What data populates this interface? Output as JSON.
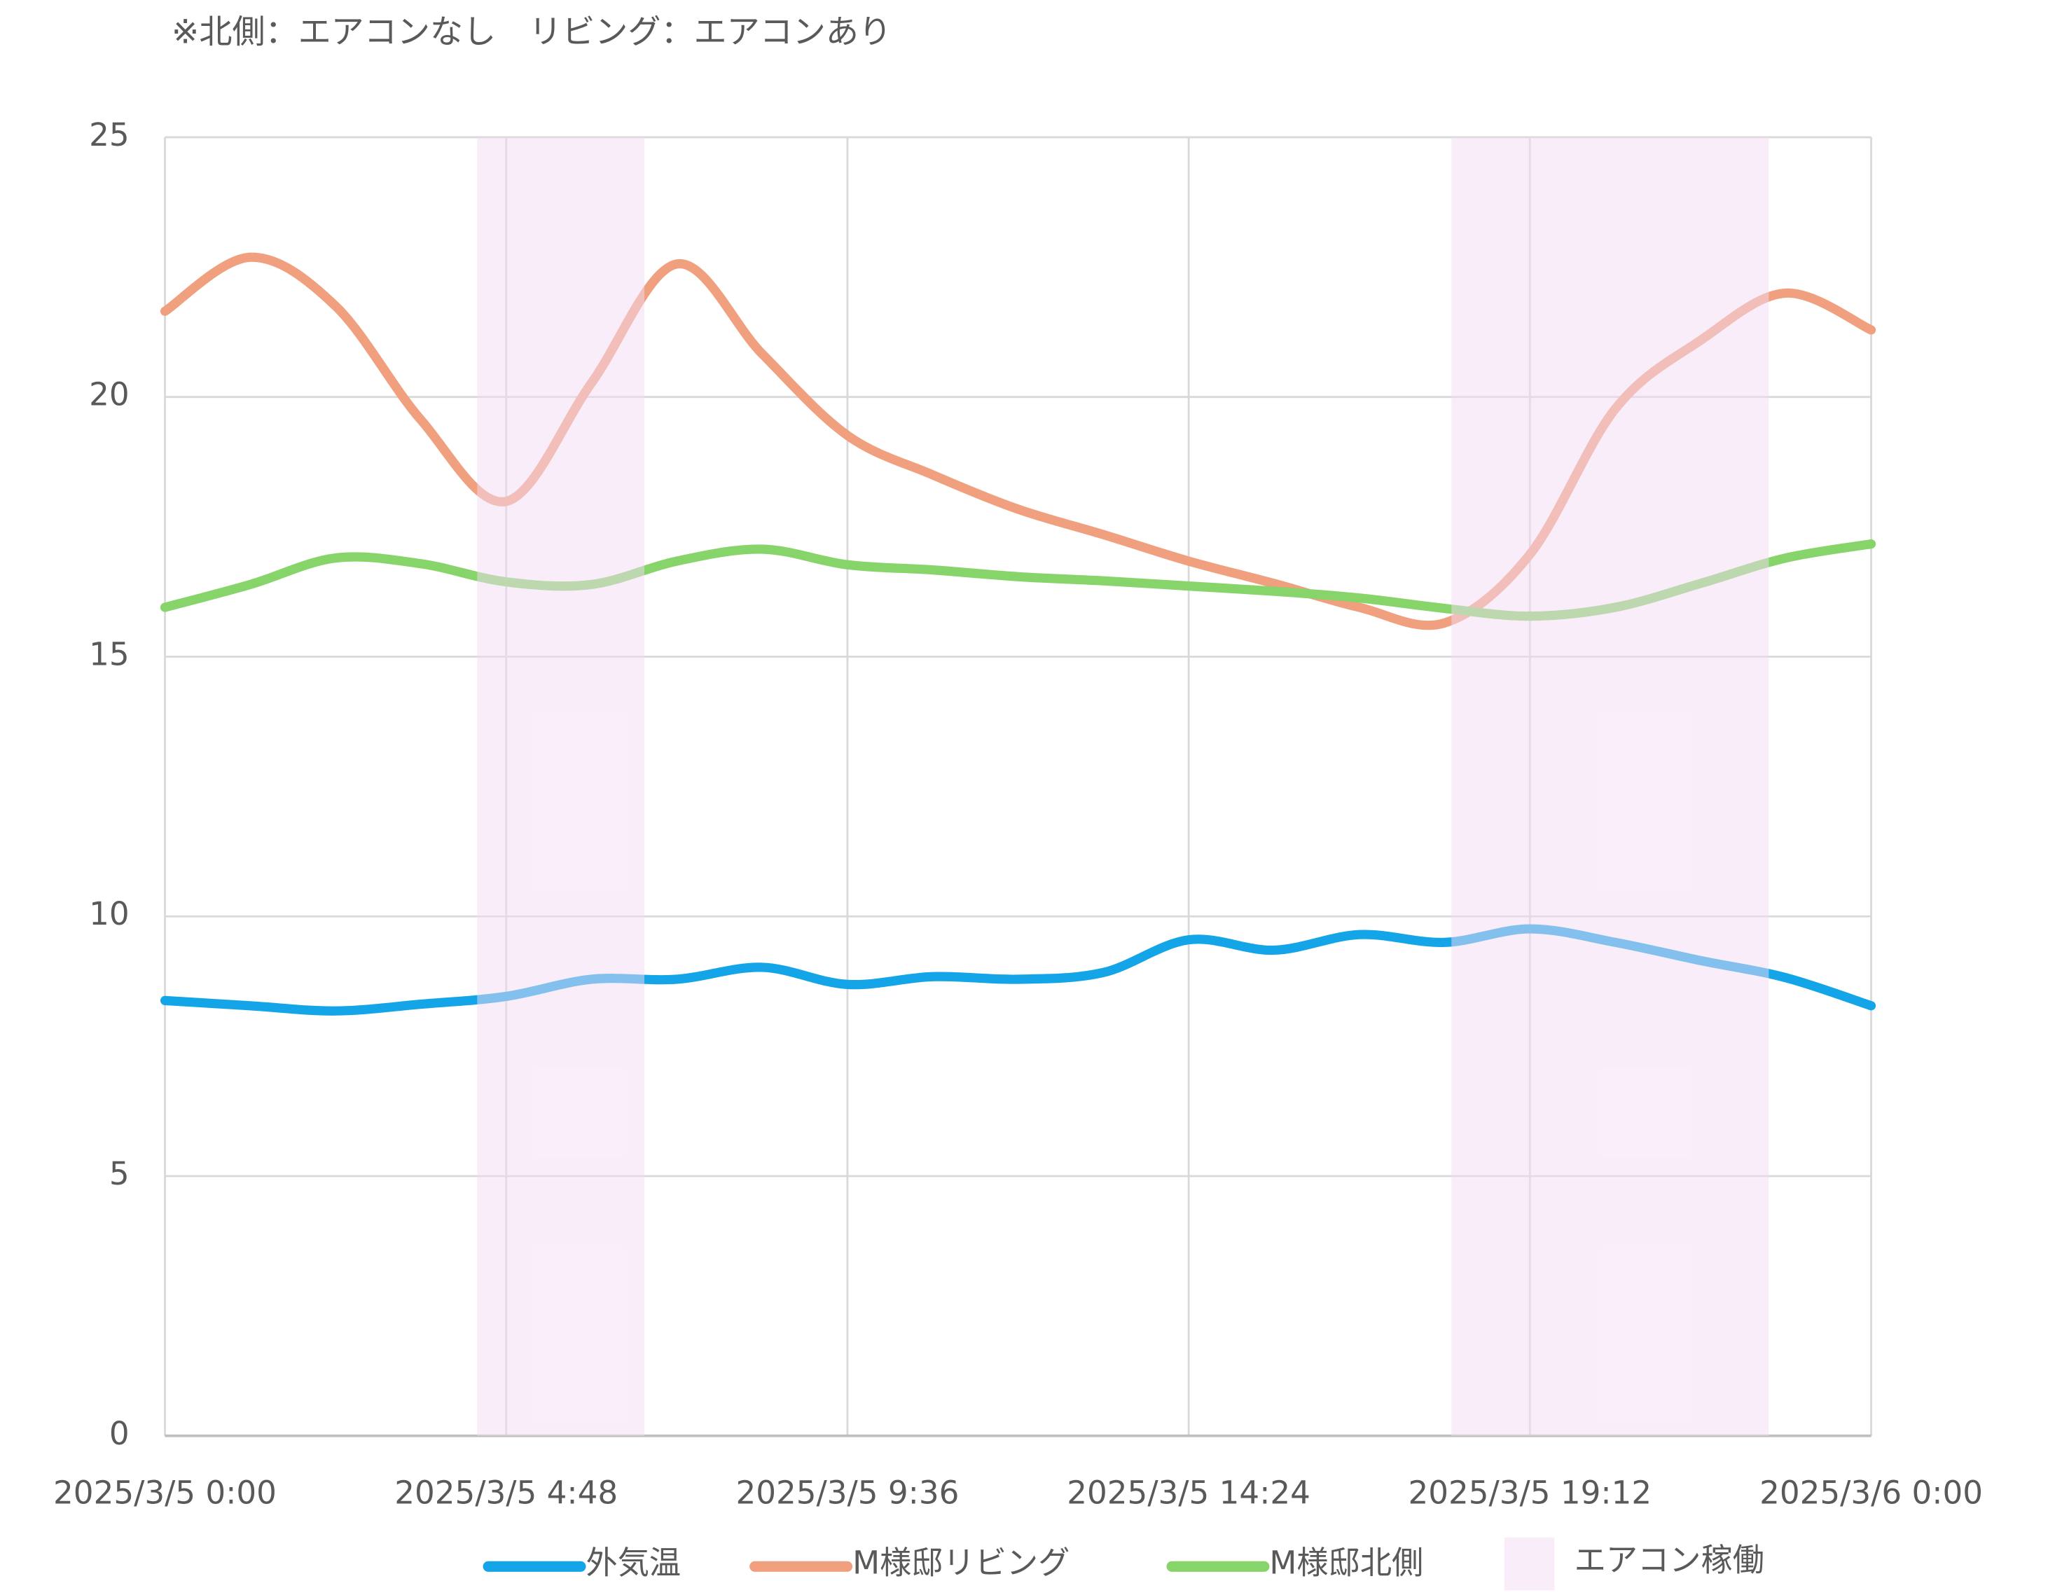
{
  "chart_data": {
    "type": "line",
    "subtitle": "※北側：エアコンなし　リビング：エアコンあり",
    "x": [
      45721,
      45721.05,
      45721.1,
      45721.15,
      45721.2,
      45721.25,
      45721.3,
      45721.35,
      45721.4,
      45721.45,
      45721.5,
      45721.55,
      45721.6,
      45721.65,
      45721.7,
      45721.75,
      45721.8,
      45721.85,
      45721.9,
      45721.95,
      45722
    ],
    "series": [
      {
        "name": "外気温",
        "color": "#14a5e8",
        "values": [
          8.38,
          8.28,
          8.18,
          8.31,
          8.46,
          8.79,
          8.79,
          9.02,
          8.69,
          8.84,
          8.79,
          8.92,
          9.55,
          9.35,
          9.65,
          9.5,
          9.76,
          9.5,
          9.15,
          8.82,
          8.28
        ]
      },
      {
        "name": "M様邸リビング",
        "color": "#f0a07e",
        "values": [
          21.65,
          22.69,
          21.75,
          19.56,
          17.99,
          20.27,
          22.56,
          20.83,
          19.26,
          18.5,
          17.84,
          17.35,
          16.84,
          16.41,
          15.95,
          15.65,
          16.97,
          19.77,
          21.09,
          22.0,
          21.29
        ]
      },
      {
        "name": "M様邸北側",
        "color": "#86d46a",
        "values": [
          15.95,
          16.39,
          16.9,
          16.79,
          16.44,
          16.39,
          16.84,
          17.07,
          16.77,
          16.67,
          16.54,
          16.46,
          16.36,
          16.26,
          16.13,
          15.93,
          15.78,
          15.95,
          16.41,
          16.9,
          17.17
        ]
      }
    ],
    "shaded": {
      "name": "エアコン稼働",
      "color": "#f3dcf3",
      "ranges": [
        [
          45721.183,
          45721.281
        ],
        [
          45721.754,
          45721.94
        ]
      ]
    },
    "xlim": [
      45721,
      45722
    ],
    "xticks": [
      {
        "value": 45721,
        "label": "2025/3/5 0:00"
      },
      {
        "value": 45721.2,
        "label": "2025/3/5 4:48"
      },
      {
        "value": 45721.4,
        "label": "2025/3/5 9:36"
      },
      {
        "value": 45721.6,
        "label": "2025/3/5 14:24"
      },
      {
        "value": 45721.8,
        "label": "2025/3/5 19:12"
      },
      {
        "value": 45722,
        "label": "2025/3/6 0:00"
      }
    ],
    "ylim": [
      0,
      25
    ],
    "yticks": [
      0,
      5,
      10,
      15,
      20,
      25
    ],
    "grid": true
  }
}
